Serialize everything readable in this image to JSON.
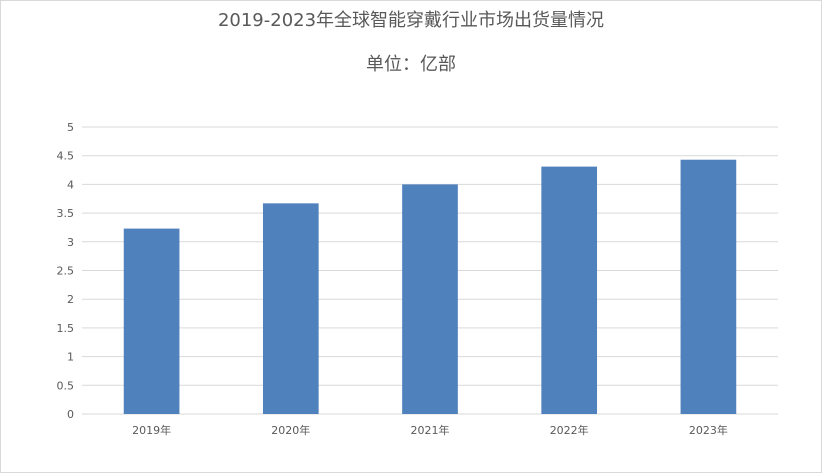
{
  "chart_data": {
    "type": "bar",
    "title": "2019-2023年全球智能穿戴行业市场出货量情况",
    "subtitle": "单位：亿部",
    "categories": [
      "2019年",
      "2020年",
      "2021年",
      "2022年",
      "2023年"
    ],
    "values": [
      3.23,
      3.67,
      4.0,
      4.31,
      4.43
    ],
    "ylim": [
      0,
      5
    ],
    "yticks": [
      "0",
      "0.5",
      "1",
      "1.5",
      "2",
      "2.5",
      "3",
      "3.5",
      "4",
      "4.5",
      "5"
    ],
    "grid": true,
    "legend": "none",
    "bar_color": "#4f81bd",
    "grid_color": "#d9d9d9"
  }
}
